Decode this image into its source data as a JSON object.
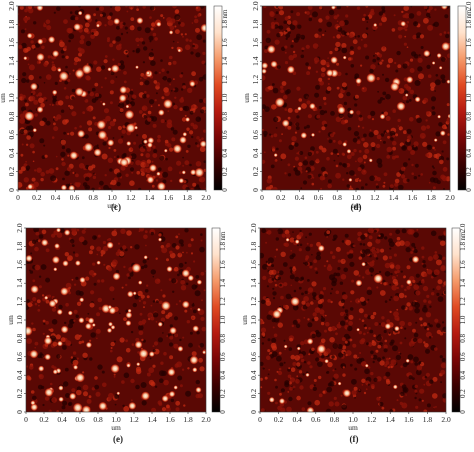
{
  "figure": {
    "panels": [
      {
        "id": "c",
        "label": "(c)",
        "x_axis": {
          "title": "um",
          "ticks": [
            "0",
            "0.2",
            "0.4",
            "0.6",
            "0.8",
            "1.0",
            "1.2",
            "1.4",
            "1.6",
            "1.8",
            "2.0"
          ]
        },
        "y_axis": {
          "title": "um",
          "ticks": [
            "0",
            "0.2",
            "0.4",
            "0.6",
            "0.8",
            "1.0",
            "1.2",
            "1.4",
            "1.6",
            "1.8",
            "2.0"
          ]
        },
        "colorbar": {
          "unit": "nm",
          "ticks": [
            "0",
            "0.2",
            "0.4",
            "0.6",
            "0.8",
            "1.0",
            "1.2",
            "1.4",
            "1.6",
            "1.8"
          ]
        },
        "texture": {
          "big": 75,
          "small": 700,
          "seed": 11
        }
      },
      {
        "id": "d",
        "label": "(d)",
        "x_axis": {
          "title": "um",
          "ticks": [
            "0",
            "0.2",
            "0.4",
            "0.6",
            "0.8",
            "1.0",
            "1.2",
            "1.4",
            "1.6",
            "1.8",
            "2.0"
          ]
        },
        "y_axis": {
          "title": "um",
          "ticks": [
            "0",
            "0.2",
            "0.4",
            "0.6",
            "0.8",
            "1.0",
            "1.2",
            "1.4",
            "1.6",
            "1.8",
            "2.0"
          ]
        },
        "colorbar": {
          "unit": "nm",
          "ticks": [
            "0",
            "0.2",
            "0.4",
            "0.6",
            "0.8",
            "1.0",
            "1.2",
            "1.4",
            "1.6",
            "1.8",
            "2.0"
          ]
        },
        "texture": {
          "big": 45,
          "small": 650,
          "seed": 23
        }
      },
      {
        "id": "e",
        "label": "(e)",
        "x_axis": {
          "title": "um",
          "ticks": [
            "0",
            "0.2",
            "0.4",
            "0.6",
            "0.8",
            "1.0",
            "1.2",
            "1.4",
            "1.6",
            "1.8",
            "2.0"
          ]
        },
        "y_axis": {
          "title": "um",
          "ticks": [
            "0",
            "0.2",
            "0.4",
            "0.6",
            "0.8",
            "1.0",
            "1.2",
            "1.4",
            "1.6",
            "1.8",
            "2.0"
          ]
        },
        "colorbar": {
          "unit": "nm",
          "ticks": [
            "0",
            "0.2",
            "0.4",
            "0.6",
            "0.8",
            "1.0",
            "1.2",
            "1.4",
            "1.6",
            "1.8"
          ]
        },
        "texture": {
          "big": 95,
          "small": 500,
          "seed": 37
        }
      },
      {
        "id": "f",
        "label": "(f)",
        "x_axis": {
          "title": "um",
          "ticks": [
            "0",
            "0.2",
            "0.4",
            "0.6",
            "0.8",
            "1.0",
            "1.2",
            "1.4",
            "1.6",
            "1.8",
            "2.0"
          ]
        },
        "y_axis": {
          "title": "um",
          "ticks": [
            "0",
            "0.2",
            "0.4",
            "0.6",
            "0.8",
            "1.0",
            "1.2",
            "1.4",
            "1.6",
            "1.8",
            "2.0"
          ]
        },
        "colorbar": {
          "unit": "nm",
          "ticks": [
            "0",
            "0.2",
            "0.4",
            "0.6",
            "0.8",
            "1.0",
            "1.2",
            "1.4",
            "1.6",
            "1.8",
            "2.0"
          ]
        },
        "texture": {
          "big": 28,
          "small": 800,
          "seed": 53
        }
      }
    ],
    "colormap": {
      "stops": [
        "#000000",
        "#3a0000",
        "#7a0606",
        "#b51a10",
        "#e04a22",
        "#f59a6a",
        "#ffe2cc",
        "#ffffff"
      ]
    }
  }
}
